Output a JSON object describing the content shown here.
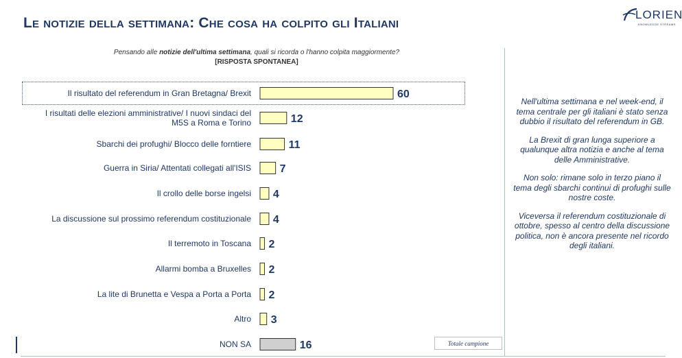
{
  "header": {
    "title": "Le notizie della settimana: Che cosa ha colpito gli Italiani"
  },
  "logo": {
    "name": "LORIEN",
    "tagline": "KNOWLEDGE STREAMS"
  },
  "question": {
    "prefix": "Pensando alle ",
    "emphasis": "notizie dell'ultima settimana",
    "suffix": ", quali si ricorda o l'hanno colpita maggiormente?",
    "type": "[RISPOSTA SPONTANEA]"
  },
  "commentary": [
    "Nell'ultima settimana e nel week-end, il tema centrale per gli italiani è stato senza dubbio il risultato del referendum in GB.",
    "La Brexit di gran lunga superiore a qualunque altra notizia e anche al tema delle Amministrative.",
    "Non solo: rimane solo in terzo piano il tema degli sbarchi continui di profughi sulle nostre coste.",
    "Viceversa il referendum costituzionale di ottobre, spesso al centro della discussione politica, non è ancora presente nel ricordo degli italiani."
  ],
  "total_label": "Totale campione",
  "colors": {
    "bar_fill": "#ffffc2",
    "bar_fill_nonsa": "#d0d0d0",
    "bar_stroke": "#333333",
    "label_text": "#1f3864"
  },
  "chart_data": {
    "type": "bar",
    "orientation": "horizontal",
    "categories": [
      "Il risultato del referendum in Gran Bretagna/ Brexit",
      "I risultati delle elezioni amministrative/ I nuovi sindaci del M5S a Roma e Torino",
      "Sbarchi dei profughi/ Blocco delle forntiere",
      "Guerra in Siria/ Attentati collegati all'ISIS",
      "Il crollo delle borse ingelsi",
      "La discussione sul prossimo referendum costituzionale",
      "Il terremoto in Toscana",
      "Allarmi bomba a Bruxelles",
      "La lite di Brunetta e Vespa a Porta a Porta",
      "Altro",
      "NON SA"
    ],
    "values": [
      60,
      12,
      11,
      7,
      4,
      4,
      2,
      2,
      2,
      3,
      16
    ],
    "category_lines": [
      [
        "Il risultato del referendum in Gran Bretagna/ Brexit"
      ],
      [
        "I risultati delle elezioni amministrative/ I nuovi sindaci del",
        "M5S a Roma e Torino"
      ],
      [
        "Sbarchi dei profughi/ Blocco delle forntiere"
      ],
      [
        "Guerra in Siria/ Attentati collegati all'ISIS"
      ],
      [
        "Il crollo delle borse ingelsi"
      ],
      [
        "La discussione sul prossimo referendum costituzionale"
      ],
      [
        "Il terremoto in Toscana"
      ],
      [
        "Allarmi bomba a Bruxelles"
      ],
      [
        "La lite di Brunetta e Vespa a Porta a Porta"
      ],
      [
        "Altro"
      ],
      [
        "NON SA"
      ]
    ],
    "highlighted_index": 0,
    "grey_index": 10,
    "xlim": [
      0,
      60
    ],
    "grid": false,
    "title": "",
    "xlabel": "",
    "ylabel": ""
  }
}
